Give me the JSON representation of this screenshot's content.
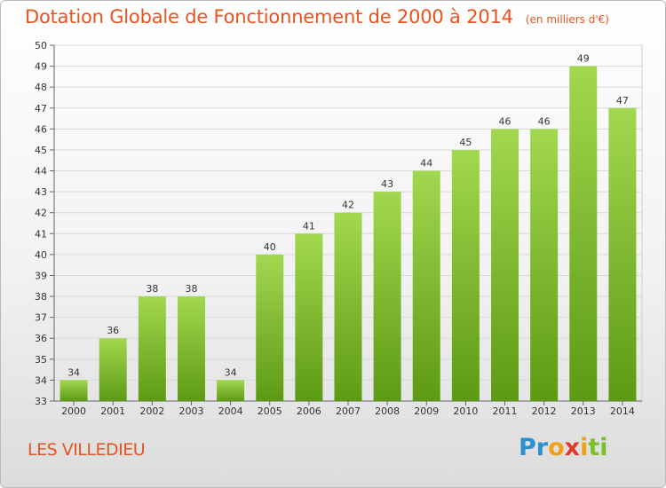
{
  "title": "Dotation Globale de Fonctionnement de 2000 à 2014",
  "unit": "(en milliers d'€)",
  "commune": "LES VILLEDIEU",
  "logo": {
    "letters": [
      "Pr",
      "o",
      "x",
      "i",
      "ti"
    ]
  },
  "colors": {
    "title": "#e8531f",
    "bar_light": "#9fd64b",
    "bar_dark": "#5e9c14"
  },
  "chart_data": {
    "type": "bar",
    "categories": [
      "2000",
      "2001",
      "2002",
      "2003",
      "2004",
      "2005",
      "2006",
      "2007",
      "2008",
      "2009",
      "2010",
      "2011",
      "2012",
      "2013",
      "2014"
    ],
    "values": [
      34,
      36,
      38,
      38,
      34,
      40,
      41,
      42,
      43,
      44,
      45,
      46,
      46,
      49,
      47
    ],
    "title": "Dotation Globale de Fonctionnement de 2000 à 2014",
    "ylim": [
      33,
      50
    ],
    "yticks": [
      33,
      34,
      35,
      36,
      37,
      38,
      39,
      40,
      41,
      42,
      43,
      44,
      45,
      46,
      47,
      48,
      49,
      50
    ],
    "grid": true,
    "legend": "none"
  }
}
